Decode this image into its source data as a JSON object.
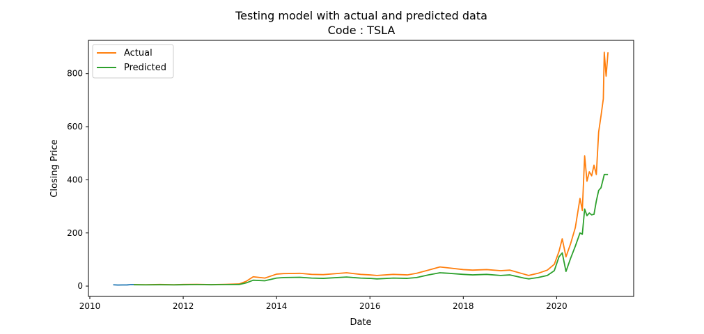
{
  "chart_data": {
    "type": "line",
    "title": "Testing model with actual and predicted data",
    "subtitle": "Code : TSLA",
    "xlabel": "Date",
    "ylabel": "Closing Price",
    "xlim": [
      2009.97,
      2021.65
    ],
    "ylim": [
      -39,
      925
    ],
    "x_ticks": [
      2010,
      2012,
      2014,
      2016,
      2018,
      2020
    ],
    "x_tick_labels": [
      "2010",
      "2012",
      "2014",
      "2016",
      "2018",
      "2020"
    ],
    "y_ticks": [
      0,
      200,
      400,
      600,
      800
    ],
    "y_tick_labels": [
      "0",
      "200",
      "400",
      "600",
      "800"
    ],
    "grid": false,
    "legend_position": "top-left",
    "series": [
      {
        "name": "",
        "color": "#1f77b4",
        "x": [
          2010.5,
          2010.6,
          2010.7,
          2010.8,
          2010.88,
          2010.94
        ],
        "y": [
          4.8,
          4.0,
          4.2,
          4.4,
          5.6,
          5.4
        ]
      },
      {
        "name": "Actual",
        "color": "#ff7f0e",
        "x": [
          2010.94,
          2011.2,
          2011.5,
          2011.8,
          2012.0,
          2012.3,
          2012.6,
          2012.9,
          2013.2,
          2013.35,
          2013.5,
          2013.75,
          2014.0,
          2014.15,
          2014.5,
          2014.75,
          2015.0,
          2015.5,
          2015.8,
          2016.0,
          2016.15,
          2016.5,
          2016.8,
          2017.0,
          2017.25,
          2017.5,
          2017.7,
          2018.0,
          2018.2,
          2018.5,
          2018.8,
          2019.0,
          2019.3,
          2019.4,
          2019.6,
          2019.8,
          2019.95,
          2020.05,
          2020.12,
          2020.2,
          2020.3,
          2020.4,
          2020.5,
          2020.55,
          2020.6,
          2020.65,
          2020.7,
          2020.75,
          2020.8,
          2020.85,
          2020.9,
          2020.95,
          2021.0,
          2021.02,
          2021.06,
          2021.1
        ],
        "y": [
          5.5,
          5.2,
          6.0,
          5.0,
          6.0,
          6.5,
          5.5,
          6.5,
          8.0,
          18,
          35,
          30,
          45,
          47,
          48,
          44,
          43,
          50,
          44,
          42,
          40,
          44,
          42,
          48,
          60,
          72,
          68,
          62,
          60,
          62,
          58,
          60,
          45,
          40,
          48,
          60,
          82,
          130,
          178,
          110,
          160,
          220,
          330,
          285,
          490,
          395,
          430,
          415,
          455,
          420,
          580,
          640,
          705,
          880,
          790,
          880
        ]
      },
      {
        "name": "Predicted",
        "color": "#2ca02c",
        "x": [
          2010.94,
          2011.2,
          2011.5,
          2011.8,
          2012.0,
          2012.3,
          2012.6,
          2012.9,
          2013.2,
          2013.35,
          2013.5,
          2013.75,
          2014.0,
          2014.15,
          2014.5,
          2014.75,
          2015.0,
          2015.5,
          2015.8,
          2016.0,
          2016.15,
          2016.5,
          2016.8,
          2017.0,
          2017.25,
          2017.5,
          2017.7,
          2018.0,
          2018.2,
          2018.5,
          2018.8,
          2019.0,
          2019.3,
          2019.4,
          2019.6,
          2019.8,
          2019.95,
          2020.05,
          2020.12,
          2020.2,
          2020.3,
          2020.4,
          2020.5,
          2020.55,
          2020.6,
          2020.65,
          2020.7,
          2020.75,
          2020.8,
          2020.85,
          2020.9,
          2020.95,
          2021.0,
          2021.02,
          2021.06,
          2021.1
        ],
        "y": [
          5.0,
          4.5,
          5.0,
          4.5,
          5.0,
          5.5,
          5.0,
          5.5,
          6.0,
          12,
          22,
          20,
          30,
          32,
          33,
          30,
          29,
          34,
          30,
          29,
          27,
          30,
          29,
          32,
          42,
          50,
          48,
          44,
          42,
          44,
          40,
          42,
          30,
          27,
          32,
          40,
          58,
          110,
          125,
          55,
          105,
          150,
          200,
          195,
          290,
          265,
          275,
          268,
          270,
          320,
          360,
          370,
          405,
          420,
          420,
          420
        ]
      }
    ]
  }
}
